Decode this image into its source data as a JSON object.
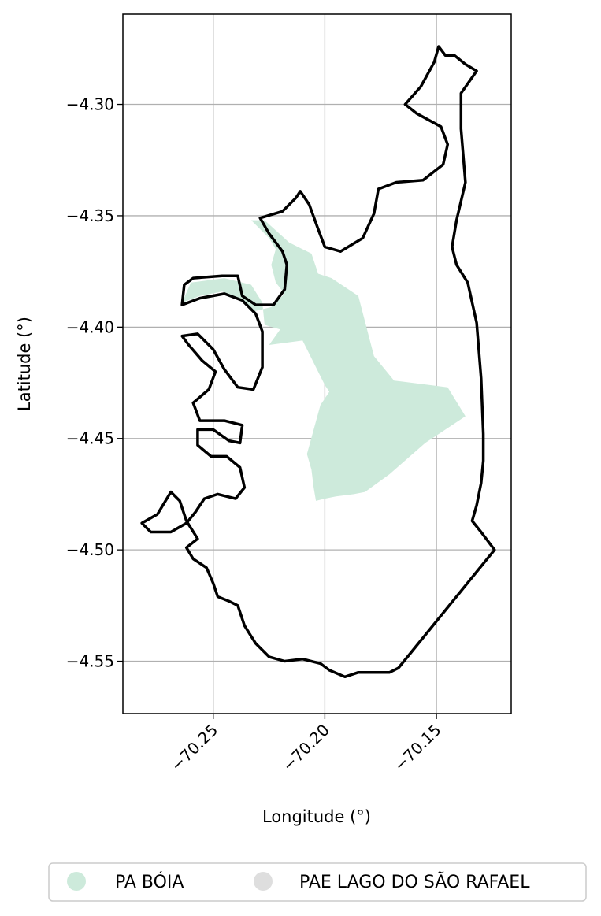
{
  "chart_data": {
    "type": "map",
    "xlabel": "Longitude (°)",
    "ylabel": "Latitude (°)",
    "xlim": [
      -70.2905,
      -70.1165
    ],
    "ylim": [
      -4.5735,
      -4.2595
    ],
    "grid": true,
    "x_ticks": [
      {
        "value": -70.25,
        "label": "−70.25"
      },
      {
        "value": -70.2,
        "label": "−70.20"
      },
      {
        "value": -70.15,
        "label": "−70.15"
      }
    ],
    "y_ticks": [
      {
        "value": -4.3,
        "label": "−4.30"
      },
      {
        "value": -4.35,
        "label": "−4.35"
      },
      {
        "value": -4.4,
        "label": "−4.40"
      },
      {
        "value": -4.45,
        "label": "−4.45"
      },
      {
        "value": -4.5,
        "label": "−4.50"
      },
      {
        "value": -4.55,
        "label": "−4.55"
      }
    ],
    "legend": {
      "placement": "bottom-center",
      "entries": [
        {
          "name": "PA BÓIA",
          "color": "#cdeadb"
        },
        {
          "name": "PAE LAGO DO SÃO RAFAEL",
          "color": "#dedede"
        }
      ]
    },
    "layers": [
      {
        "name": "PA BÓIA",
        "fill": "#cdeadb",
        "coords": [
          [
            -70.264,
            -4.389
          ],
          [
            -70.26,
            -4.38
          ],
          [
            -70.245,
            -4.378
          ],
          [
            -70.233,
            -4.381
          ],
          [
            -70.228,
            -4.389
          ],
          [
            -70.227,
            -4.399
          ],
          [
            -70.22,
            -4.401
          ],
          [
            -70.225,
            -4.408
          ],
          [
            -70.21,
            -4.406
          ],
          [
            -70.2,
            -4.426
          ],
          [
            -70.198,
            -4.429
          ],
          [
            -70.202,
            -4.435
          ],
          [
            -70.208,
            -4.457
          ],
          [
            -70.206,
            -4.464
          ],
          [
            -70.205,
            -4.472
          ],
          [
            -70.204,
            -4.478
          ],
          [
            -70.2,
            -4.477
          ],
          [
            -70.195,
            -4.476
          ],
          [
            -70.187,
            -4.475
          ],
          [
            -70.182,
            -4.474
          ],
          [
            -70.171,
            -4.466
          ],
          [
            -70.155,
            -4.452
          ],
          [
            -70.137,
            -4.44
          ],
          [
            -70.145,
            -4.427
          ],
          [
            -70.169,
            -4.424
          ],
          [
            -70.178,
            -4.413
          ],
          [
            -70.185,
            -4.386
          ],
          [
            -70.197,
            -4.378
          ],
          [
            -70.203,
            -4.376
          ],
          [
            -70.206,
            -4.367
          ],
          [
            -70.216,
            -4.362
          ],
          [
            -70.227,
            -4.352
          ],
          [
            -70.233,
            -4.352
          ],
          [
            -70.23,
            -4.355
          ],
          [
            -70.225,
            -4.36
          ],
          [
            -70.222,
            -4.365
          ],
          [
            -70.224,
            -4.372
          ],
          [
            -70.222,
            -4.38
          ],
          [
            -70.218,
            -4.385
          ],
          [
            -70.224,
            -4.391
          ],
          [
            -70.232,
            -4.393
          ],
          [
            -70.239,
            -4.387
          ],
          [
            -70.246,
            -4.384
          ],
          [
            -70.256,
            -4.386
          ],
          [
            -70.264,
            -4.389
          ]
        ]
      },
      {
        "name": "PAE LAGO DO SÃO RAFAEL",
        "fill": "none",
        "stroke": "#000000",
        "coords": [
          [
            -70.146,
            -4.278
          ],
          [
            -70.142,
            -4.278
          ],
          [
            -70.137,
            -4.282
          ],
          [
            -70.132,
            -4.285
          ],
          [
            -70.139,
            -4.295
          ],
          [
            -70.139,
            -4.311
          ],
          [
            -70.137,
            -4.335
          ],
          [
            -70.141,
            -4.352
          ],
          [
            -70.143,
            -4.364
          ],
          [
            -70.141,
            -4.372
          ],
          [
            -70.136,
            -4.38
          ],
          [
            -70.132,
            -4.398
          ],
          [
            -70.13,
            -4.423
          ],
          [
            -70.129,
            -4.448
          ],
          [
            -70.129,
            -4.46
          ],
          [
            -70.13,
            -4.47
          ],
          [
            -70.132,
            -4.48
          ],
          [
            -70.134,
            -4.487
          ],
          [
            -70.13,
            -4.492
          ],
          [
            -70.124,
            -4.5
          ],
          [
            -70.167,
            -4.553
          ],
          [
            -70.171,
            -4.555
          ],
          [
            -70.178,
            -4.555
          ],
          [
            -70.185,
            -4.555
          ],
          [
            -70.191,
            -4.557
          ],
          [
            -70.198,
            -4.554
          ],
          [
            -70.202,
            -4.551
          ],
          [
            -70.21,
            -4.549
          ],
          [
            -70.218,
            -4.55
          ],
          [
            -70.225,
            -4.548
          ],
          [
            -70.231,
            -4.542
          ],
          [
            -70.236,
            -4.534
          ],
          [
            -70.239,
            -4.525
          ],
          [
            -70.243,
            -4.523
          ],
          [
            -70.248,
            -4.521
          ],
          [
            -70.25,
            -4.515
          ],
          [
            -70.253,
            -4.508
          ],
          [
            -70.259,
            -4.504
          ],
          [
            -70.262,
            -4.499
          ],
          [
            -70.257,
            -4.495
          ],
          [
            -70.262,
            -4.487
          ],
          [
            -70.265,
            -4.478
          ],
          [
            -70.269,
            -4.474
          ],
          [
            -70.275,
            -4.484
          ],
          [
            -70.282,
            -4.488
          ],
          [
            -70.278,
            -4.492
          ],
          [
            -70.269,
            -4.492
          ],
          [
            -70.262,
            -4.488
          ],
          [
            -70.258,
            -4.483
          ],
          [
            -70.254,
            -4.477
          ],
          [
            -70.248,
            -4.475
          ],
          [
            -70.24,
            -4.477
          ],
          [
            -70.236,
            -4.472
          ],
          [
            -70.238,
            -4.463
          ],
          [
            -70.244,
            -4.458
          ],
          [
            -70.251,
            -4.458
          ],
          [
            -70.257,
            -4.453
          ],
          [
            -70.257,
            -4.446
          ],
          [
            -70.25,
            -4.446
          ],
          [
            -70.243,
            -4.451
          ],
          [
            -70.238,
            -4.452
          ],
          [
            -70.237,
            -4.444
          ],
          [
            -70.245,
            -4.442
          ],
          [
            -70.256,
            -4.442
          ],
          [
            -70.259,
            -4.434
          ],
          [
            -70.252,
            -4.428
          ],
          [
            -70.249,
            -4.42
          ],
          [
            -70.255,
            -4.415
          ],
          [
            -70.261,
            -4.408
          ],
          [
            -70.264,
            -4.404
          ],
          [
            -70.257,
            -4.403
          ],
          [
            -70.25,
            -4.41
          ],
          [
            -70.245,
            -4.419
          ],
          [
            -70.239,
            -4.427
          ],
          [
            -70.232,
            -4.428
          ],
          [
            -70.228,
            -4.418
          ],
          [
            -70.228,
            -4.402
          ],
          [
            -70.231,
            -4.394
          ],
          [
            -70.237,
            -4.388
          ],
          [
            -70.245,
            -4.385
          ],
          [
            -70.256,
            -4.387
          ],
          [
            -70.264,
            -4.39
          ],
          [
            -70.263,
            -4.381
          ],
          [
            -70.259,
            -4.378
          ],
          [
            -70.246,
            -4.377
          ],
          [
            -70.239,
            -4.377
          ],
          [
            -70.237,
            -4.386
          ],
          [
            -70.231,
            -4.39
          ],
          [
            -70.223,
            -4.39
          ],
          [
            -70.218,
            -4.383
          ],
          [
            -70.217,
            -4.372
          ],
          [
            -70.219,
            -4.366
          ],
          [
            -70.225,
            -4.358
          ],
          [
            -70.229,
            -4.351
          ],
          [
            -70.219,
            -4.348
          ],
          [
            -70.213,
            -4.342
          ],
          [
            -70.211,
            -4.339
          ],
          [
            -70.207,
            -4.345
          ],
          [
            -70.203,
            -4.356
          ],
          [
            -70.2,
            -4.364
          ],
          [
            -70.193,
            -4.366
          ],
          [
            -70.183,
            -4.36
          ],
          [
            -70.178,
            -4.349
          ],
          [
            -70.176,
            -4.338
          ],
          [
            -70.168,
            -4.335
          ],
          [
            -70.156,
            -4.334
          ],
          [
            -70.147,
            -4.327
          ],
          [
            -70.145,
            -4.318
          ],
          [
            -70.148,
            -4.31
          ],
          [
            -70.159,
            -4.304
          ],
          [
            -70.164,
            -4.3
          ],
          [
            -70.157,
            -4.292
          ],
          [
            -70.151,
            -4.281
          ],
          [
            -70.149,
            -4.274
          ],
          [
            -70.146,
            -4.278
          ]
        ]
      }
    ]
  }
}
